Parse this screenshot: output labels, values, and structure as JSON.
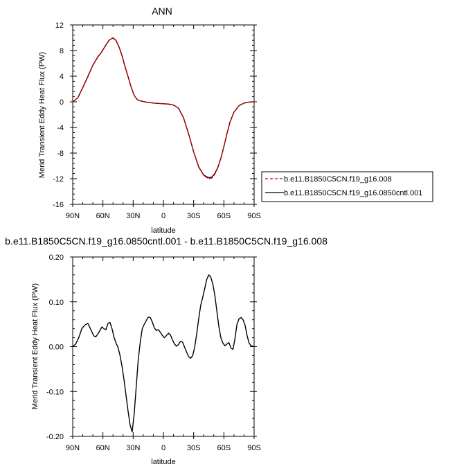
{
  "chart_data": [
    {
      "type": "line",
      "title": "ANN",
      "xlabel": "latitude",
      "ylabel": "Merid Transient Eddy Heat Flux (PW)",
      "xlim": [
        90,
        -90
      ],
      "ylim": [
        -16,
        12
      ],
      "x_tick_values": [
        90,
        60,
        30,
        0,
        -30,
        -60,
        -90
      ],
      "x_tick_labels": [
        "90N",
        "60N",
        "30N",
        "0",
        "30S",
        "60S",
        "90S"
      ],
      "y_tick_values": [
        12,
        8,
        4,
        0,
        -4,
        -8,
        -12,
        -16
      ],
      "y_tick_labels": [
        "12",
        "8",
        "4",
        "0",
        "-4",
        "-8",
        "-12",
        "-16"
      ],
      "grid": false,
      "legend_position": "right",
      "series": [
        {
          "name": "b.e11.B1850C5CN.f19_g16.008",
          "color": "#cc0000",
          "dash": "dashed",
          "x": [
            90,
            85,
            80,
            75,
            70,
            65,
            62,
            58,
            54,
            50,
            47,
            44,
            41,
            38,
            35,
            32,
            29,
            26,
            23,
            20,
            17,
            14,
            10,
            5,
            0,
            -5,
            -10,
            -15,
            -20,
            -25,
            -30,
            -35,
            -40,
            -45,
            -48,
            -51,
            -54,
            -57,
            -60,
            -63,
            -66,
            -70,
            -75,
            -80,
            -85,
            -90
          ],
          "y": [
            0,
            0.6,
            2.2,
            3.9,
            5.7,
            7.0,
            7.6,
            8.6,
            9.6,
            10.0,
            9.6,
            8.6,
            7.2,
            5.5,
            3.9,
            2.3,
            1.0,
            0.35,
            0.15,
            0.05,
            -0.05,
            -0.1,
            -0.2,
            -0.25,
            -0.3,
            -0.35,
            -0.5,
            -1.0,
            -2.5,
            -5.0,
            -7.8,
            -10.2,
            -11.5,
            -12.0,
            -11.9,
            -11.3,
            -10.3,
            -8.8,
            -7.0,
            -5.0,
            -3.2,
            -1.6,
            -0.6,
            -0.2,
            -0.05,
            0
          ]
        },
        {
          "name": "b.e11.B1850C5CN.f19_g16.0850cntl.001",
          "color": "#000000",
          "dash": "solid",
          "x": [
            90,
            85,
            80,
            75,
            70,
            65,
            62,
            58,
            54,
            50,
            47,
            44,
            41,
            38,
            35,
            32,
            29,
            26,
            23,
            20,
            17,
            14,
            10,
            5,
            0,
            -5,
            -10,
            -15,
            -20,
            -25,
            -30,
            -35,
            -40,
            -45,
            -48,
            -51,
            -54,
            -57,
            -60,
            -63,
            -66,
            -70,
            -75,
            -80,
            -85,
            -90
          ],
          "y": [
            0,
            0.62,
            2.24,
            3.95,
            5.72,
            7.05,
            7.62,
            8.63,
            9.6,
            9.98,
            9.57,
            8.55,
            7.15,
            5.45,
            3.88,
            2.3,
            1.0,
            0.35,
            0.15,
            0.05,
            -0.05,
            -0.1,
            -0.2,
            -0.25,
            -0.3,
            -0.35,
            -0.5,
            -1.0,
            -2.5,
            -5.0,
            -7.8,
            -10.15,
            -11.45,
            -11.85,
            -11.75,
            -11.2,
            -10.25,
            -8.8,
            -7.0,
            -5.0,
            -3.2,
            -1.6,
            -0.6,
            -0.2,
            -0.05,
            0
          ]
        }
      ]
    },
    {
      "type": "line",
      "title": "b.e11.B1850C5CN.f19_g16.0850cntl.001 - b.e11.B1850C5CN.f19_g16.008",
      "xlabel": "latitude",
      "ylabel": "Merid Transient Eddy Heat Flux (PW)",
      "xlim": [
        90,
        -90
      ],
      "ylim": [
        -0.2,
        0.2
      ],
      "x_tick_values": [
        90,
        60,
        30,
        0,
        -30,
        -60,
        -90
      ],
      "x_tick_labels": [
        "90N",
        "60N",
        "30N",
        "0",
        "30S",
        "60S",
        "90S"
      ],
      "y_tick_values": [
        0.2,
        0.1,
        0,
        -0.1,
        -0.2
      ],
      "y_tick_labels": [
        "0.20",
        "0.10",
        "0.00",
        "-0.10",
        "-0.20"
      ],
      "grid": false,
      "series": [
        {
          "color": "#000000",
          "dash": "solid",
          "x": [
            90,
            87,
            84,
            81,
            78,
            75,
            73,
            71,
            69,
            67,
            64,
            61,
            59,
            57,
            55,
            53,
            51,
            49,
            47,
            45,
            43,
            41,
            39,
            37,
            35,
            33,
            31,
            29,
            27,
            25,
            23,
            21,
            19,
            17,
            15,
            13,
            11,
            9,
            7,
            5,
            3,
            1,
            -1,
            -3,
            -5,
            -7,
            -9,
            -11,
            -13,
            -15,
            -17,
            -19,
            -21,
            -23,
            -25,
            -27,
            -29,
            -31,
            -33,
            -35,
            -37,
            -39,
            -41,
            -43,
            -45,
            -47,
            -49,
            -51,
            -53,
            -55,
            -57,
            -59,
            -61,
            -63,
            -65,
            -67,
            -69,
            -71,
            -73,
            -75,
            -77,
            -79,
            -81,
            -83,
            -85,
            -87,
            -90
          ],
          "y": [
            0,
            0.006,
            0.02,
            0.04,
            0.048,
            0.052,
            0.043,
            0.033,
            0.024,
            0.022,
            0.032,
            0.044,
            0.04,
            0.038,
            0.052,
            0.054,
            0.04,
            0.021,
            0.008,
            -0.002,
            -0.02,
            -0.045,
            -0.075,
            -0.11,
            -0.145,
            -0.175,
            -0.19,
            -0.15,
            -0.09,
            -0.03,
            0.01,
            0.04,
            0.05,
            0.058,
            0.066,
            0.065,
            0.055,
            0.042,
            0.036,
            0.038,
            0.032,
            0.025,
            0.02,
            0.025,
            0.03,
            0.026,
            0.015,
            0.006,
            0.001,
            0.005,
            0.012,
            0.01,
            -0.001,
            -0.012,
            -0.022,
            -0.026,
            -0.02,
            -0.002,
            0.028,
            0.062,
            0.092,
            0.11,
            0.13,
            0.15,
            0.16,
            0.155,
            0.14,
            0.115,
            0.08,
            0.045,
            0.02,
            0.008,
            0.002,
            0.006,
            0.009,
            -0.003,
            -0.006,
            0.018,
            0.05,
            0.062,
            0.065,
            0.06,
            0.048,
            0.025,
            0.008,
            0.002,
            0
          ]
        }
      ]
    }
  ]
}
